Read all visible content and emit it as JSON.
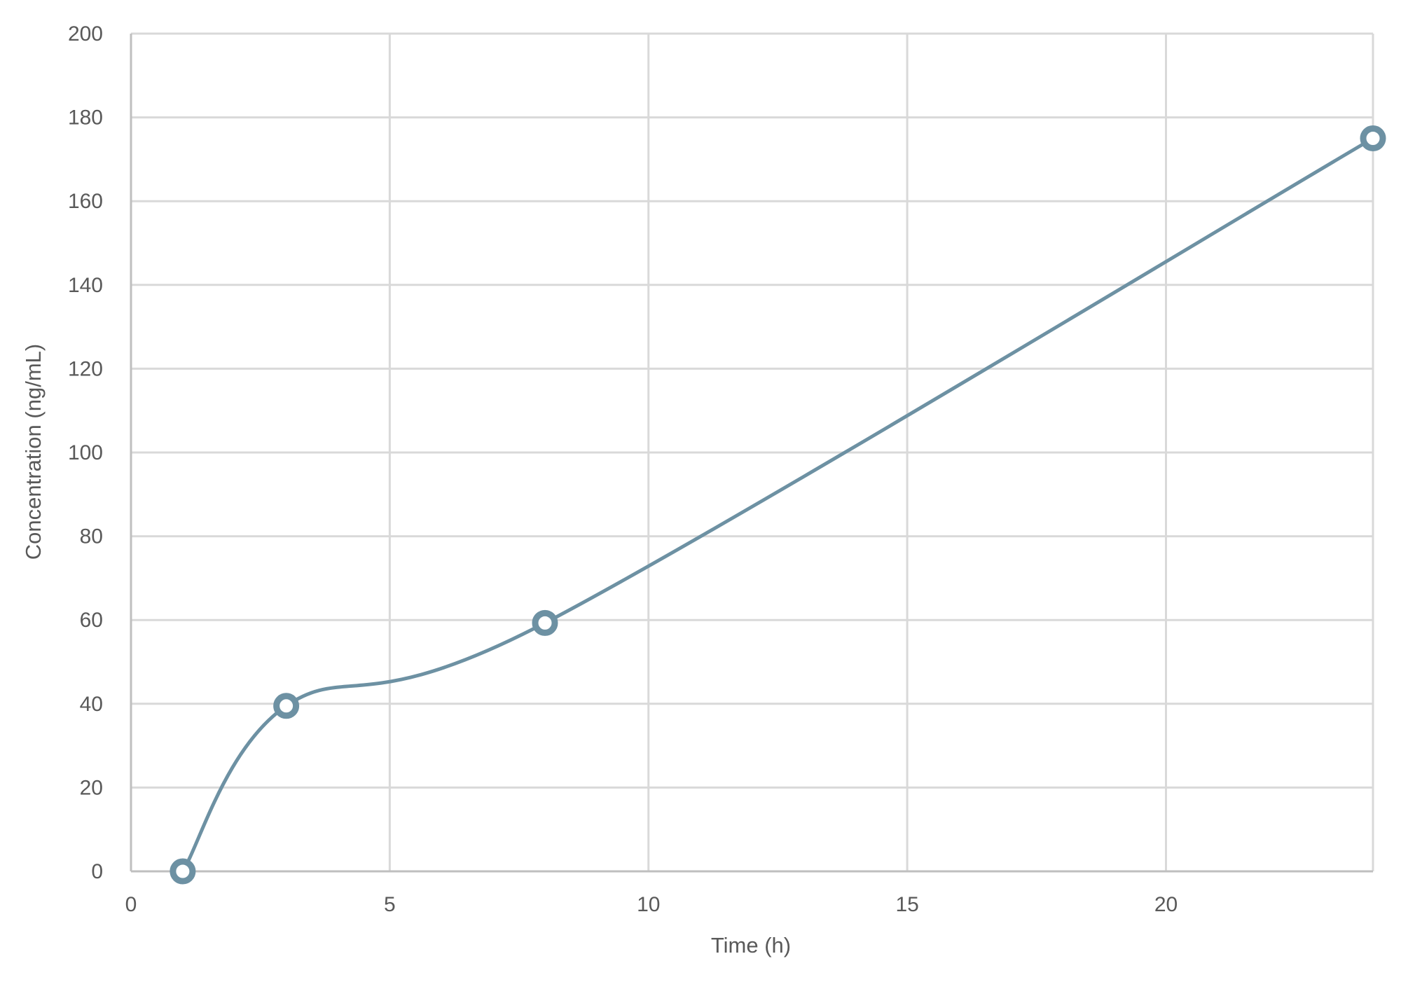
{
  "chart_data": {
    "type": "scatter",
    "title": "",
    "xlabel": "Time (h)",
    "ylabel": "Concentration (ng/mL)",
    "xlim": [
      0,
      24
    ],
    "ylim": [
      0,
      200
    ],
    "x_ticks": [
      0,
      5,
      10,
      15,
      20
    ],
    "y_ticks": [
      0,
      20,
      40,
      60,
      80,
      100,
      120,
      140,
      160,
      180,
      200
    ],
    "grid": true,
    "legend": "none",
    "smoothed_line": true,
    "series": [
      {
        "x": [
          1,
          3,
          8,
          24
        ],
        "y": [
          0,
          39.5,
          59.3,
          175
        ],
        "color": "#6d91a3"
      }
    ]
  }
}
